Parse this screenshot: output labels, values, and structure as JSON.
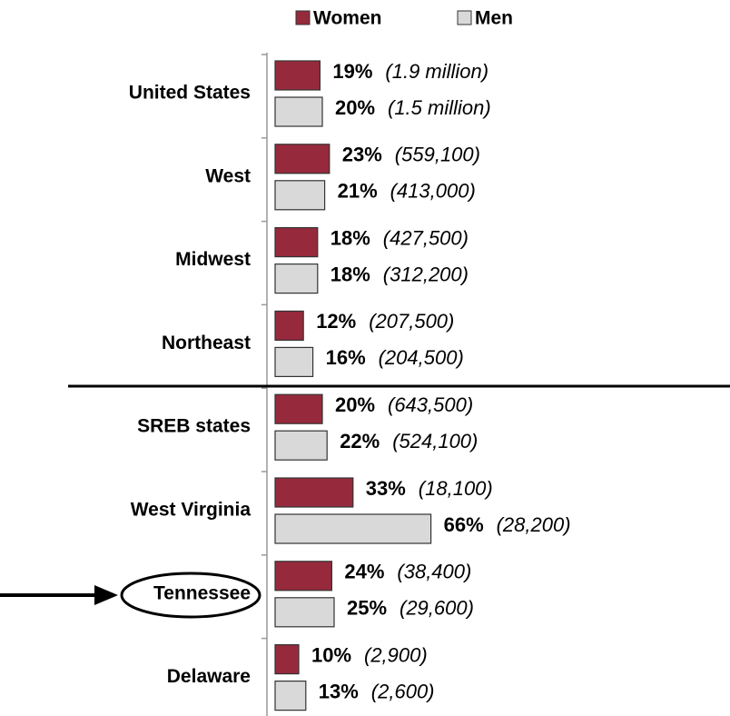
{
  "chart_data": {
    "type": "hbar",
    "categories": [
      "United States",
      "West",
      "Midwest",
      "Northeast",
      "SREB states",
      "West Virginia",
      "Tennessee",
      "Delaware"
    ],
    "series": [
      {
        "name": "Women",
        "color": "#962a3c",
        "values": [
          19,
          23,
          18,
          12,
          20,
          33,
          24,
          10
        ],
        "value_labels": [
          "19%",
          "23%",
          "18%",
          "12%",
          "20%",
          "33%",
          "24%",
          "10%"
        ],
        "counts": [
          "(1.9 million)",
          "(559,100)",
          "(427,500)",
          "(207,500)",
          "(643,500)",
          "(18,100)",
          "(38,400)",
          "(2,900)"
        ]
      },
      {
        "name": "Men",
        "color": "#d9d9d9",
        "values": [
          20,
          21,
          18,
          16,
          22,
          66,
          25,
          13
        ],
        "value_labels": [
          "20%",
          "21%",
          "18%",
          "16%",
          "22%",
          "66%",
          "25%",
          "13%"
        ],
        "counts": [
          "(1.5 million)",
          "(413,000)",
          "(312,200)",
          "(204,500)",
          "(524,100)",
          "(28,200)",
          "(29,600)",
          "(2,600)"
        ]
      }
    ],
    "xlim": [
      0,
      100
    ]
  }
}
